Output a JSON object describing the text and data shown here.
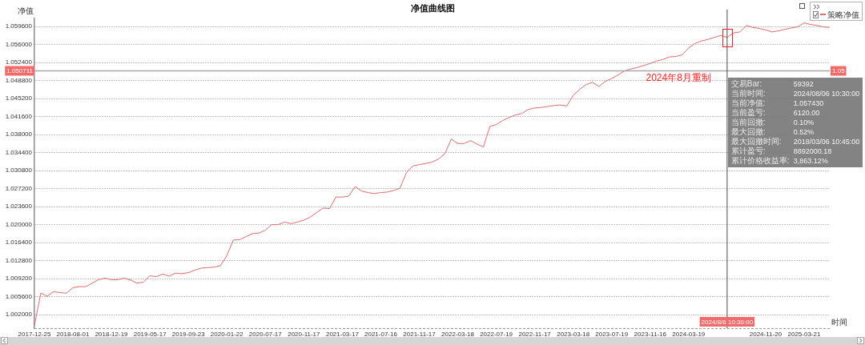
{
  "chart_data": {
    "type": "line",
    "title": "净值曲线图",
    "xlabel": "时间",
    "ylabel": "净值",
    "categories": [
      "2017-12-25",
      null,
      null,
      null,
      null,
      null,
      "2018-08-01",
      null,
      null,
      null,
      null,
      null,
      "2018-12-19",
      null,
      null,
      null,
      null,
      null,
      "2019-05-17",
      null,
      null,
      null,
      null,
      null,
      "2019-09-23",
      null,
      null,
      null,
      null,
      null,
      "2020-01-22",
      null,
      null,
      null,
      null,
      null,
      "2020-07-17",
      null,
      null,
      null,
      null,
      null,
      "2020-11-17",
      null,
      null,
      null,
      null,
      null,
      "2021-03-17",
      null,
      null,
      null,
      null,
      null,
      "2021-07-16",
      null,
      null,
      null,
      null,
      null,
      "2021-11-17",
      null,
      null,
      null,
      null,
      null,
      "2022-03-18",
      null,
      null,
      null,
      null,
      null,
      "2022-07-19",
      null,
      null,
      null,
      null,
      null,
      "2022-11-17",
      null,
      null,
      null,
      null,
      null,
      "2023-03-18",
      null,
      null,
      null,
      null,
      null,
      "2023-07-19",
      null,
      null,
      null,
      null,
      null,
      "2023-11-16",
      null,
      null,
      null,
      null,
      null,
      "2024-03-19",
      null,
      null,
      null,
      null,
      null,
      "2024/8/6 10:30:00",
      null,
      null,
      null,
      null,
      null,
      "2024-11-20",
      null,
      null,
      null,
      null,
      null,
      "2025-03-21",
      null,
      null,
      null,
      null
    ],
    "series": [
      {
        "name": "策略净值",
        "color": "#e06c6c",
        "values": [
          0.9999,
          1.0063,
          1.0057,
          1.0066,
          1.0064,
          1.0063,
          1.0074,
          1.0076,
          1.0076,
          1.0083,
          1.009,
          1.0093,
          1.009,
          1.009,
          1.0093,
          1.0089,
          1.0083,
          1.0085,
          1.0098,
          1.0096,
          1.0101,
          1.0097,
          1.0103,
          1.0102,
          1.0104,
          1.0109,
          1.0113,
          1.0114,
          1.0115,
          1.0118,
          1.0138,
          1.0169,
          1.017,
          1.0176,
          1.0182,
          1.0183,
          1.0189,
          1.02,
          1.02,
          1.0205,
          1.0202,
          1.0205,
          1.0209,
          1.0215,
          1.0224,
          1.0233,
          1.0232,
          1.0255,
          1.0255,
          1.0257,
          1.0276,
          1.0267,
          1.0264,
          1.0262,
          1.0264,
          1.0265,
          1.0268,
          1.0273,
          1.0304,
          1.0317,
          1.032,
          1.0322,
          1.0325,
          1.0331,
          1.0342,
          1.0371,
          1.0362,
          1.0362,
          1.0368,
          1.0361,
          1.0355,
          1.0396,
          1.04,
          1.0408,
          1.0414,
          1.0419,
          1.0422,
          1.043,
          1.0433,
          1.0434,
          1.0436,
          1.0438,
          1.0439,
          1.0437,
          1.0458,
          1.047,
          1.048,
          1.0484,
          1.0476,
          1.0486,
          1.0492,
          1.0499,
          1.0507,
          1.0511,
          1.0514,
          1.0518,
          1.0522,
          1.0527,
          1.053,
          1.0535,
          1.0536,
          1.0539,
          1.0553,
          1.0562,
          1.0567,
          1.057,
          1.0574,
          1.0578,
          1.0574,
          1.0583,
          1.0585,
          1.0598,
          1.0594,
          1.0592,
          1.0589,
          1.0585,
          1.0587,
          1.059,
          1.0593,
          1.0595,
          1.0603,
          1.06,
          1.0598,
          1.0595,
          1.0594
        ]
      }
    ],
    "ylim": [
      0.9993,
      1.0612
    ],
    "yticks": [
      {
        "value": 1.002,
        "label": "1.002000"
      },
      {
        "value": 1.0056,
        "label": "1.005600"
      },
      {
        "value": 1.0092,
        "label": "1.009200"
      },
      {
        "value": 1.0128,
        "label": "1.012800"
      },
      {
        "value": 1.0164,
        "label": "1.016400"
      },
      {
        "value": 1.02,
        "label": "1.020000"
      },
      {
        "value": 1.0236,
        "label": "1.023600"
      },
      {
        "value": 1.0272,
        "label": "1.027200"
      },
      {
        "value": 1.0308,
        "label": "1.030800"
      },
      {
        "value": 1.0344,
        "label": "1.034400"
      },
      {
        "value": 1.038,
        "label": "1.038000"
      },
      {
        "value": 1.0416,
        "label": "1.041600"
      },
      {
        "value": 1.0452,
        "label": "1.045200"
      },
      {
        "value": 1.0488,
        "label": "1.048800"
      },
      {
        "value": 1.0524,
        "label": "1.052400"
      },
      {
        "value": 1.056,
        "label": "1.056000"
      },
      {
        "value": 1.0596,
        "label": "1.059600"
      }
    ],
    "grid": "y",
    "legend": "top right",
    "marker": "none",
    "line_style": "solid",
    "ref_lines": [
      {
        "axis": "x",
        "value": "2024/8/6 10:30:00",
        "color": "#4a4a4a"
      },
      {
        "axis": "y",
        "value": 1.050711,
        "label": "1.050711",
        "color": "#a8a8a8"
      }
    ],
    "annotations": [
      "2024年8月重制",
      {
        "text": "1.05",
        "y": 1.050711
      },
      "交易Bar:",
      "59392",
      "当前时间:",
      "2024/08/06 10:30:00",
      "当前净值:",
      "1.057430",
      "当前盈亏:",
      "6120.00",
      "当前回撤:",
      "0.10%",
      "最大回撤:",
      "0.52%",
      "最大回撤时间:",
      "2018/03/06 10:45:00",
      "累计盈亏:",
      "8892000.18",
      "累计价格收益率:",
      "3,863.12%"
    ]
  }
}
